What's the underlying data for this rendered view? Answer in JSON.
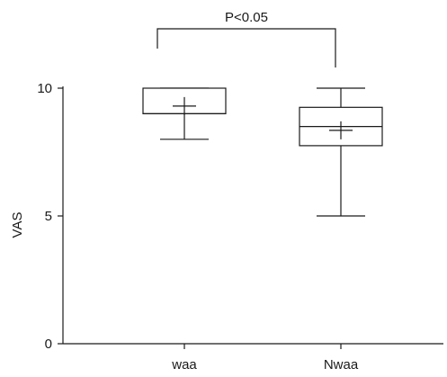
{
  "chart_data": {
    "type": "box",
    "ylabel": "VAS",
    "xlabel": "",
    "ylim": [
      0,
      10
    ],
    "yticks": [
      0,
      5,
      10
    ],
    "categories": [
      "waa",
      "Nwaa"
    ],
    "boxes": [
      {
        "category": "waa",
        "min": 8,
        "q1": 9,
        "median": 9,
        "q3": 10,
        "max": 10,
        "mean": 9.3
      },
      {
        "category": "Nwaa",
        "min": 5,
        "q1": 7.75,
        "median": 8.5,
        "q3": 9.25,
        "max": 10,
        "mean": 8.35
      }
    ],
    "annotation": {
      "text": "P<0.05",
      "between": [
        "waa",
        "Nwaa"
      ]
    }
  }
}
